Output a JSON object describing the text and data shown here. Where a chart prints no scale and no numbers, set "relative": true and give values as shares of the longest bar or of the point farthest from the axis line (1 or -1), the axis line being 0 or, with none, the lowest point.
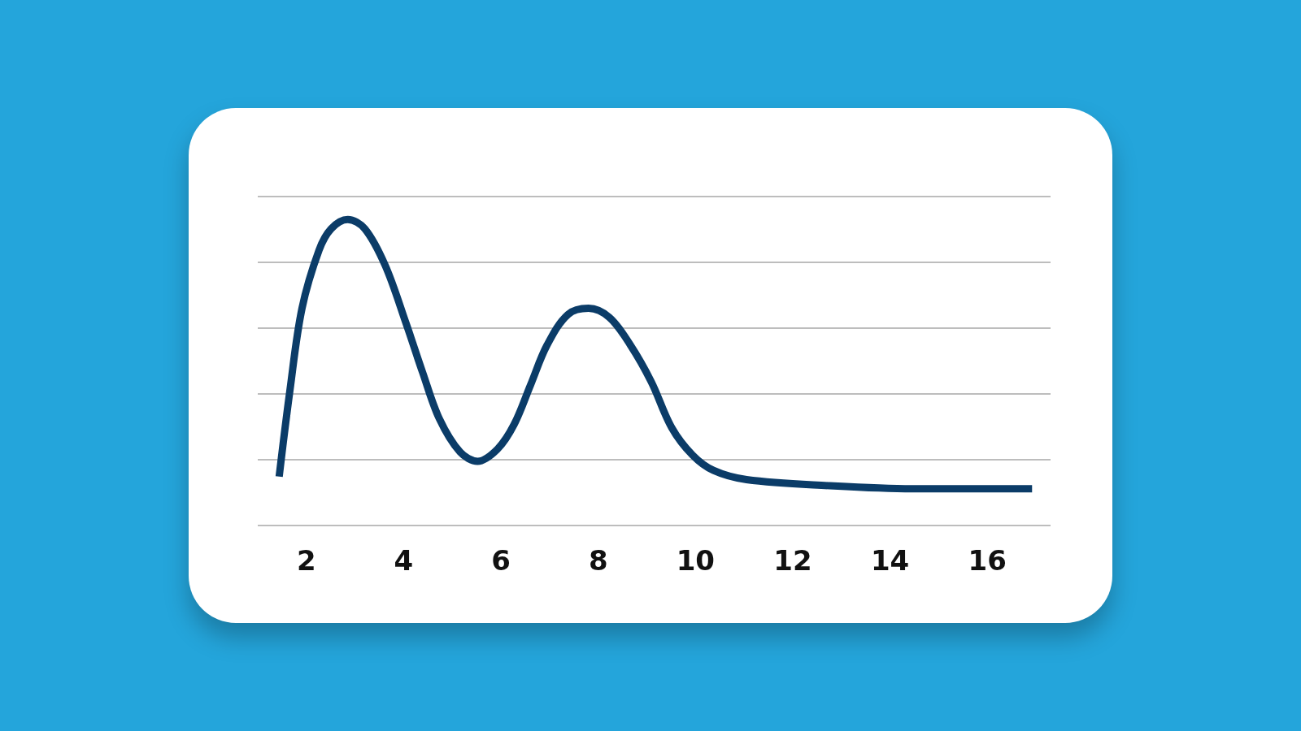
{
  "chart_data": {
    "type": "line",
    "relative": true,
    "xlim": [
      1,
      17.3
    ],
    "xticks": [
      2,
      4,
      6,
      8,
      10,
      12,
      14,
      16
    ],
    "grid": "y",
    "tick_labels": "x",
    "marker": "none",
    "line_style": "solid",
    "series": [
      {
        "color": "#0b3c68",
        "x": [
          1.44,
          1.66,
          1.91,
          2.26,
          2.51,
          2.85,
          3.2,
          3.62,
          4.05,
          4.39,
          4.73,
          5.16,
          5.52,
          5.93,
          6.27,
          6.61,
          6.95,
          7.38,
          7.8,
          8.23,
          8.66,
          9.09,
          9.51,
          9.94,
          10.37,
          11.05,
          12.76,
          14.46,
          16.92
        ],
        "values": [
          0.16,
          0.44,
          0.71,
          0.9,
          0.97,
          1,
          0.97,
          0.85,
          0.66,
          0.5,
          0.35,
          0.24,
          0.21,
          0.25,
          0.33,
          0.46,
          0.59,
          0.69,
          0.71,
          0.68,
          0.59,
          0.47,
          0.32,
          0.23,
          0.18,
          0.15,
          0.13,
          0.12,
          0.12
        ]
      }
    ]
  }
}
